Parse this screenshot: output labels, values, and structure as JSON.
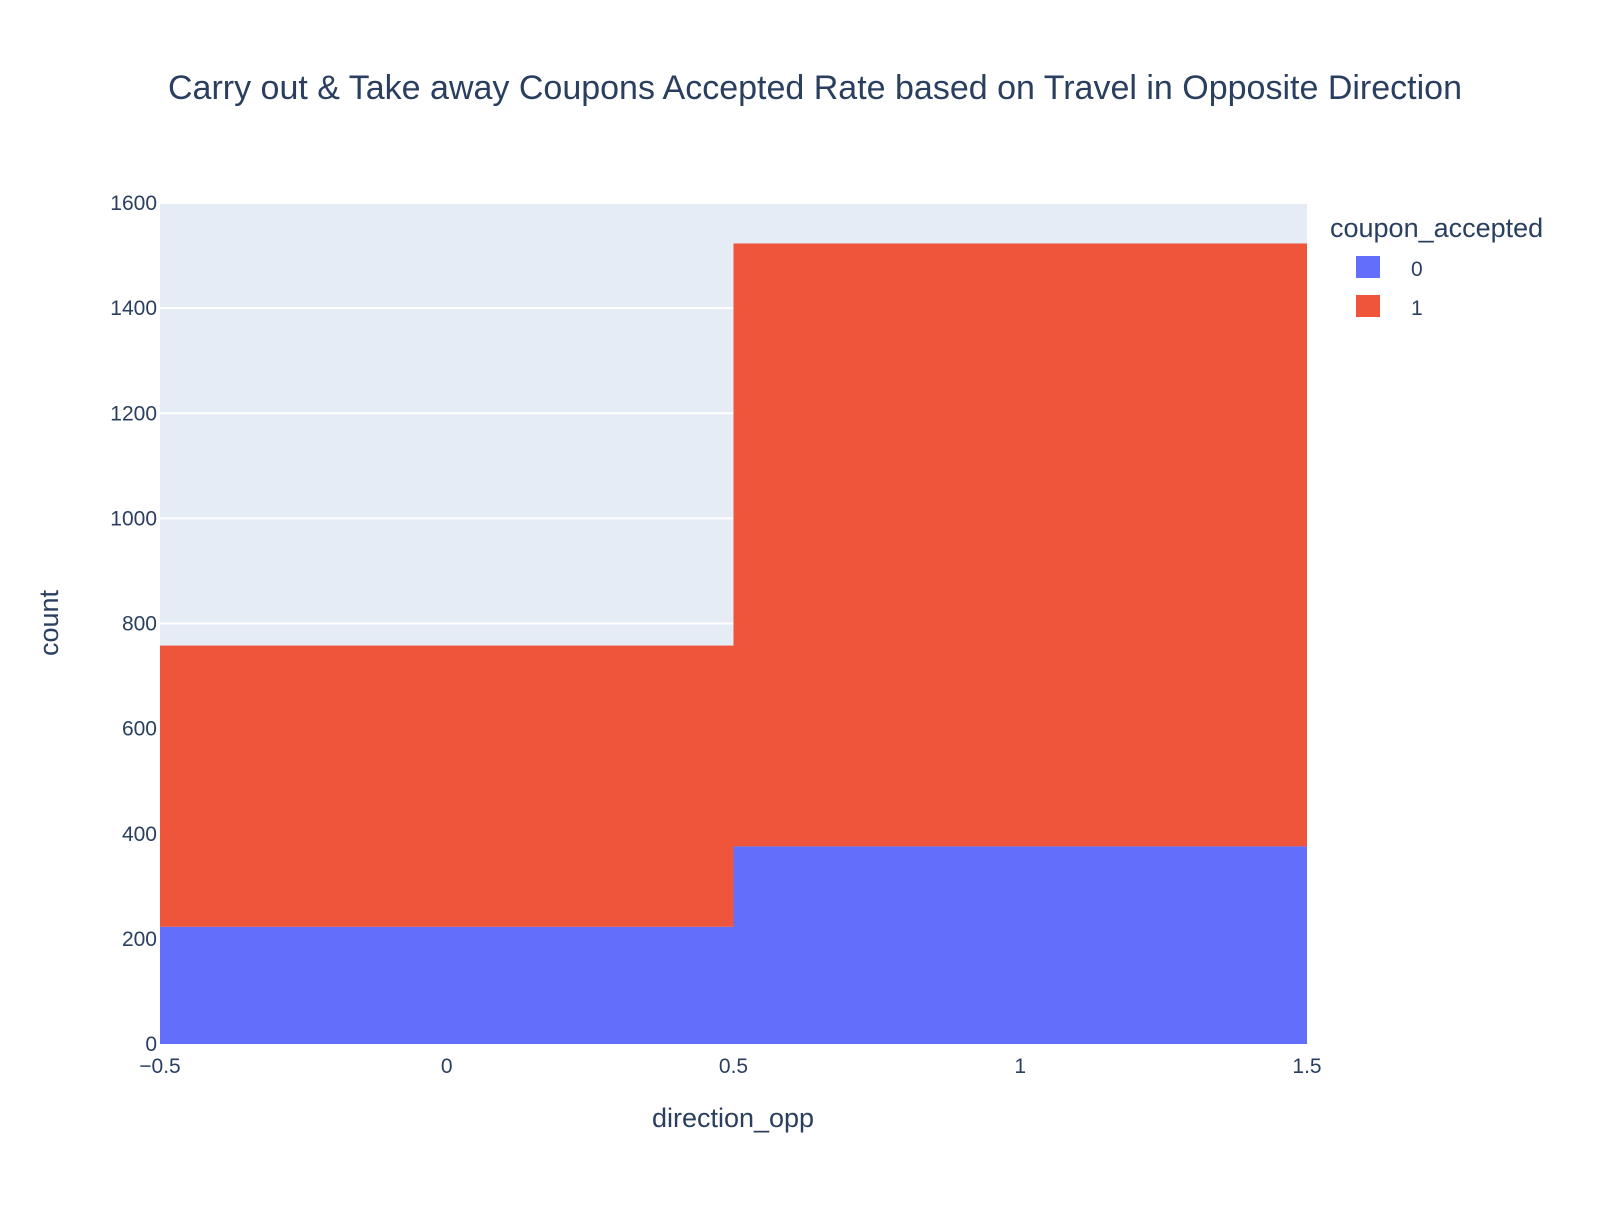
{
  "chart_data": {
    "type": "bar",
    "barmode": "stack",
    "title": "Carry out & Take away Coupons Accepted Rate based on Travel in Opposite Direction",
    "xlabel": "direction_opp",
    "ylabel": "count",
    "xlim": [
      -0.5,
      1.5
    ],
    "ylim": [
      0,
      1600
    ],
    "x_ticks": [
      "−0.5",
      "0",
      "0.5",
      "1",
      "1.5"
    ],
    "y_ticks": [
      "0",
      "200",
      "400",
      "600",
      "800",
      "1000",
      "1200",
      "1400",
      "1600"
    ],
    "categories": [
      0,
      1
    ],
    "bin_edges": [
      [
        -0.5,
        0.5
      ],
      [
        0.5,
        1.5
      ]
    ],
    "series": [
      {
        "name": "0",
        "color": "#636efa",
        "values": [
          223,
          376
        ]
      },
      {
        "name": "1",
        "color": "#ef553b",
        "values": [
          535,
          1147
        ]
      }
    ],
    "legend": {
      "title": "coupon_accepted",
      "position": "top-right"
    },
    "grid": true,
    "plot_background": "#e5ecf6"
  }
}
